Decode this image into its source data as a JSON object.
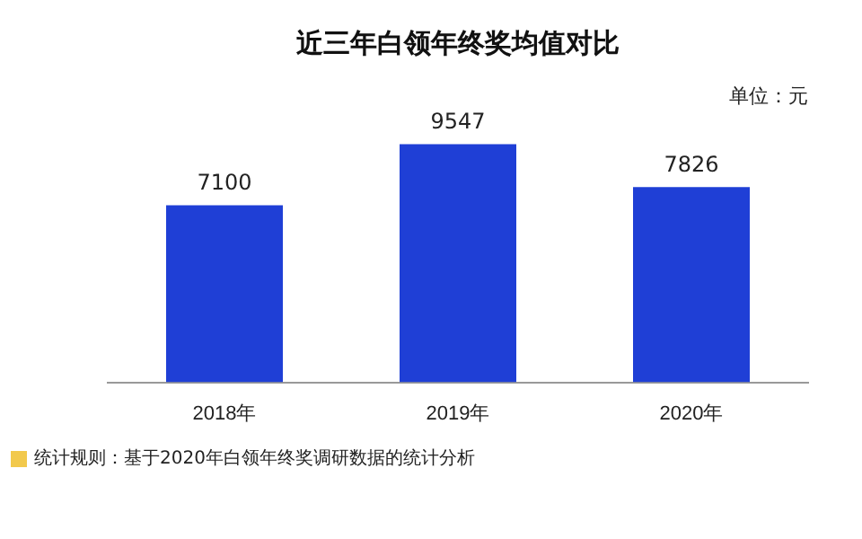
{
  "chart_data": {
    "type": "bar",
    "title": "近三年白领年终奖均值对比",
    "categories": [
      "2018年",
      "2019年",
      "2020年"
    ],
    "values": [
      7100,
      9547,
      7826
    ],
    "color": "#1f3fd6",
    "data_labels": true,
    "grid": false,
    "legend": false,
    "tick_labels": "x",
    "annotations": [
      "单位：元",
      "统计规则：基于2020年白领年终奖调研数据的统计分析"
    ]
  }
}
